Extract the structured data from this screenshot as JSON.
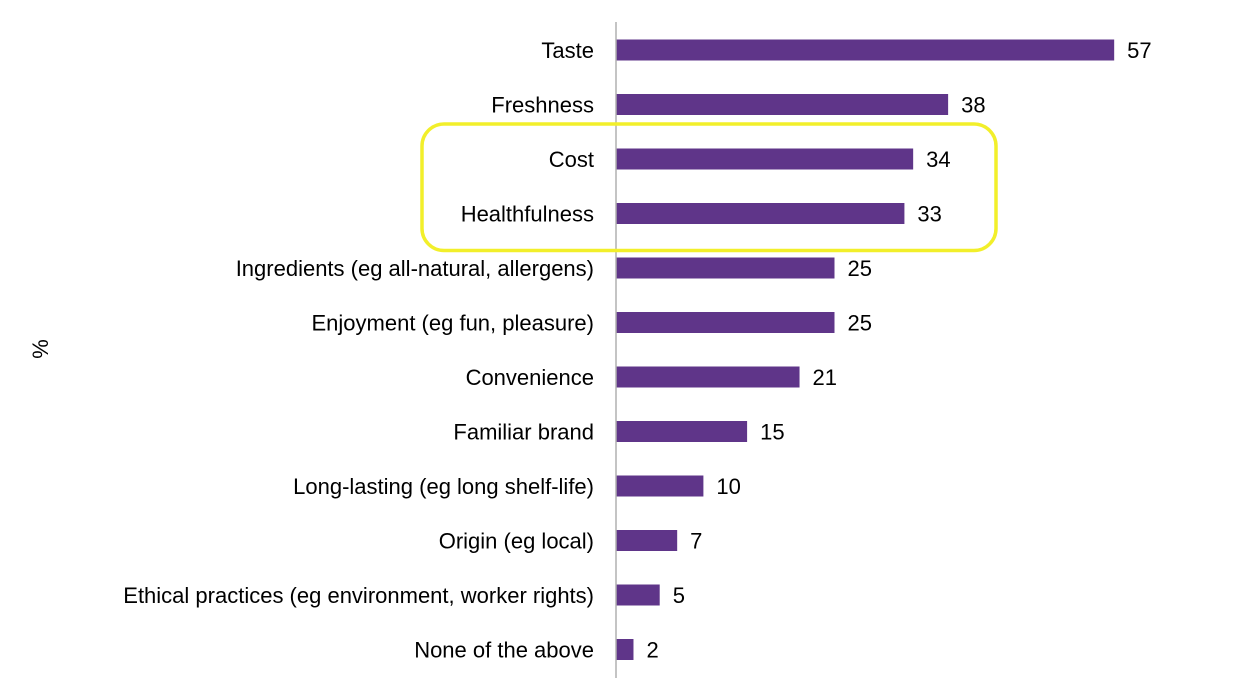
{
  "chart_data": {
    "type": "bar",
    "orientation": "horizontal",
    "ylabel": "%",
    "bar_color": "#5f3589",
    "highlight_color": "#f2ef2a",
    "highlight_categories": [
      "Cost",
      "Healthfulness"
    ],
    "xlim": [
      0,
      60
    ],
    "grid": false,
    "categories": [
      "Taste",
      "Freshness",
      "Cost",
      "Healthfulness",
      "Ingredients (eg all-natural, allergens)",
      "Enjoyment (eg fun, pleasure)",
      "Convenience",
      "Familiar brand",
      "Long-lasting (eg long shelf-life)",
      "Origin (eg local)",
      "Ethical practices (eg environment, worker rights)",
      "None of the above"
    ],
    "values": [
      57,
      38,
      34,
      33,
      25,
      25,
      21,
      15,
      10,
      7,
      5,
      2
    ],
    "value_labels": [
      "57",
      "38",
      "34",
      "33",
      "25",
      "25",
      "21",
      "15",
      "10",
      "7",
      "5",
      "2"
    ]
  }
}
